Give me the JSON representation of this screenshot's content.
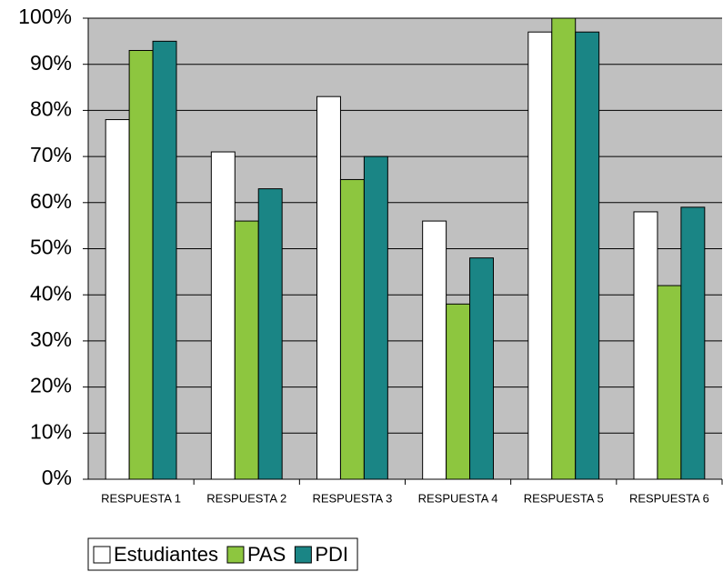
{
  "chart_data": {
    "type": "bar",
    "categories": [
      "RESPUESTA 1",
      "RESPUESTA 2",
      "RESPUESTA 3",
      "RESPUESTA 4",
      "RESPUESTA 5",
      "RESPUESTA 6"
    ],
    "series": [
      {
        "name": "Estudiantes",
        "color": "#ffffff",
        "values": [
          78,
          71,
          83,
          56,
          97,
          58
        ]
      },
      {
        "name": "PAS",
        "color": "#8dc63f",
        "values": [
          93,
          56,
          65,
          38,
          100,
          42
        ]
      },
      {
        "name": "PDI",
        "color": "#1a8585",
        "values": [
          95,
          63,
          70,
          48,
          97,
          59
        ]
      }
    ],
    "ylim": [
      0,
      100
    ],
    "yticks": [
      {
        "value": 0,
        "label": "0%"
      },
      {
        "value": 10,
        "label": "10%"
      },
      {
        "value": 20,
        "label": "20%"
      },
      {
        "value": 30,
        "label": "30%"
      },
      {
        "value": 40,
        "label": "40%"
      },
      {
        "value": 50,
        "label": "50%"
      },
      {
        "value": 60,
        "label": "60%"
      },
      {
        "value": 70,
        "label": "70%"
      },
      {
        "value": 80,
        "label": "80%"
      },
      {
        "value": 90,
        "label": "90%"
      },
      {
        "value": 100,
        "label": "100%"
      }
    ],
    "grid": true,
    "legend": "bottom",
    "plot_background": "#c0c0c0"
  }
}
